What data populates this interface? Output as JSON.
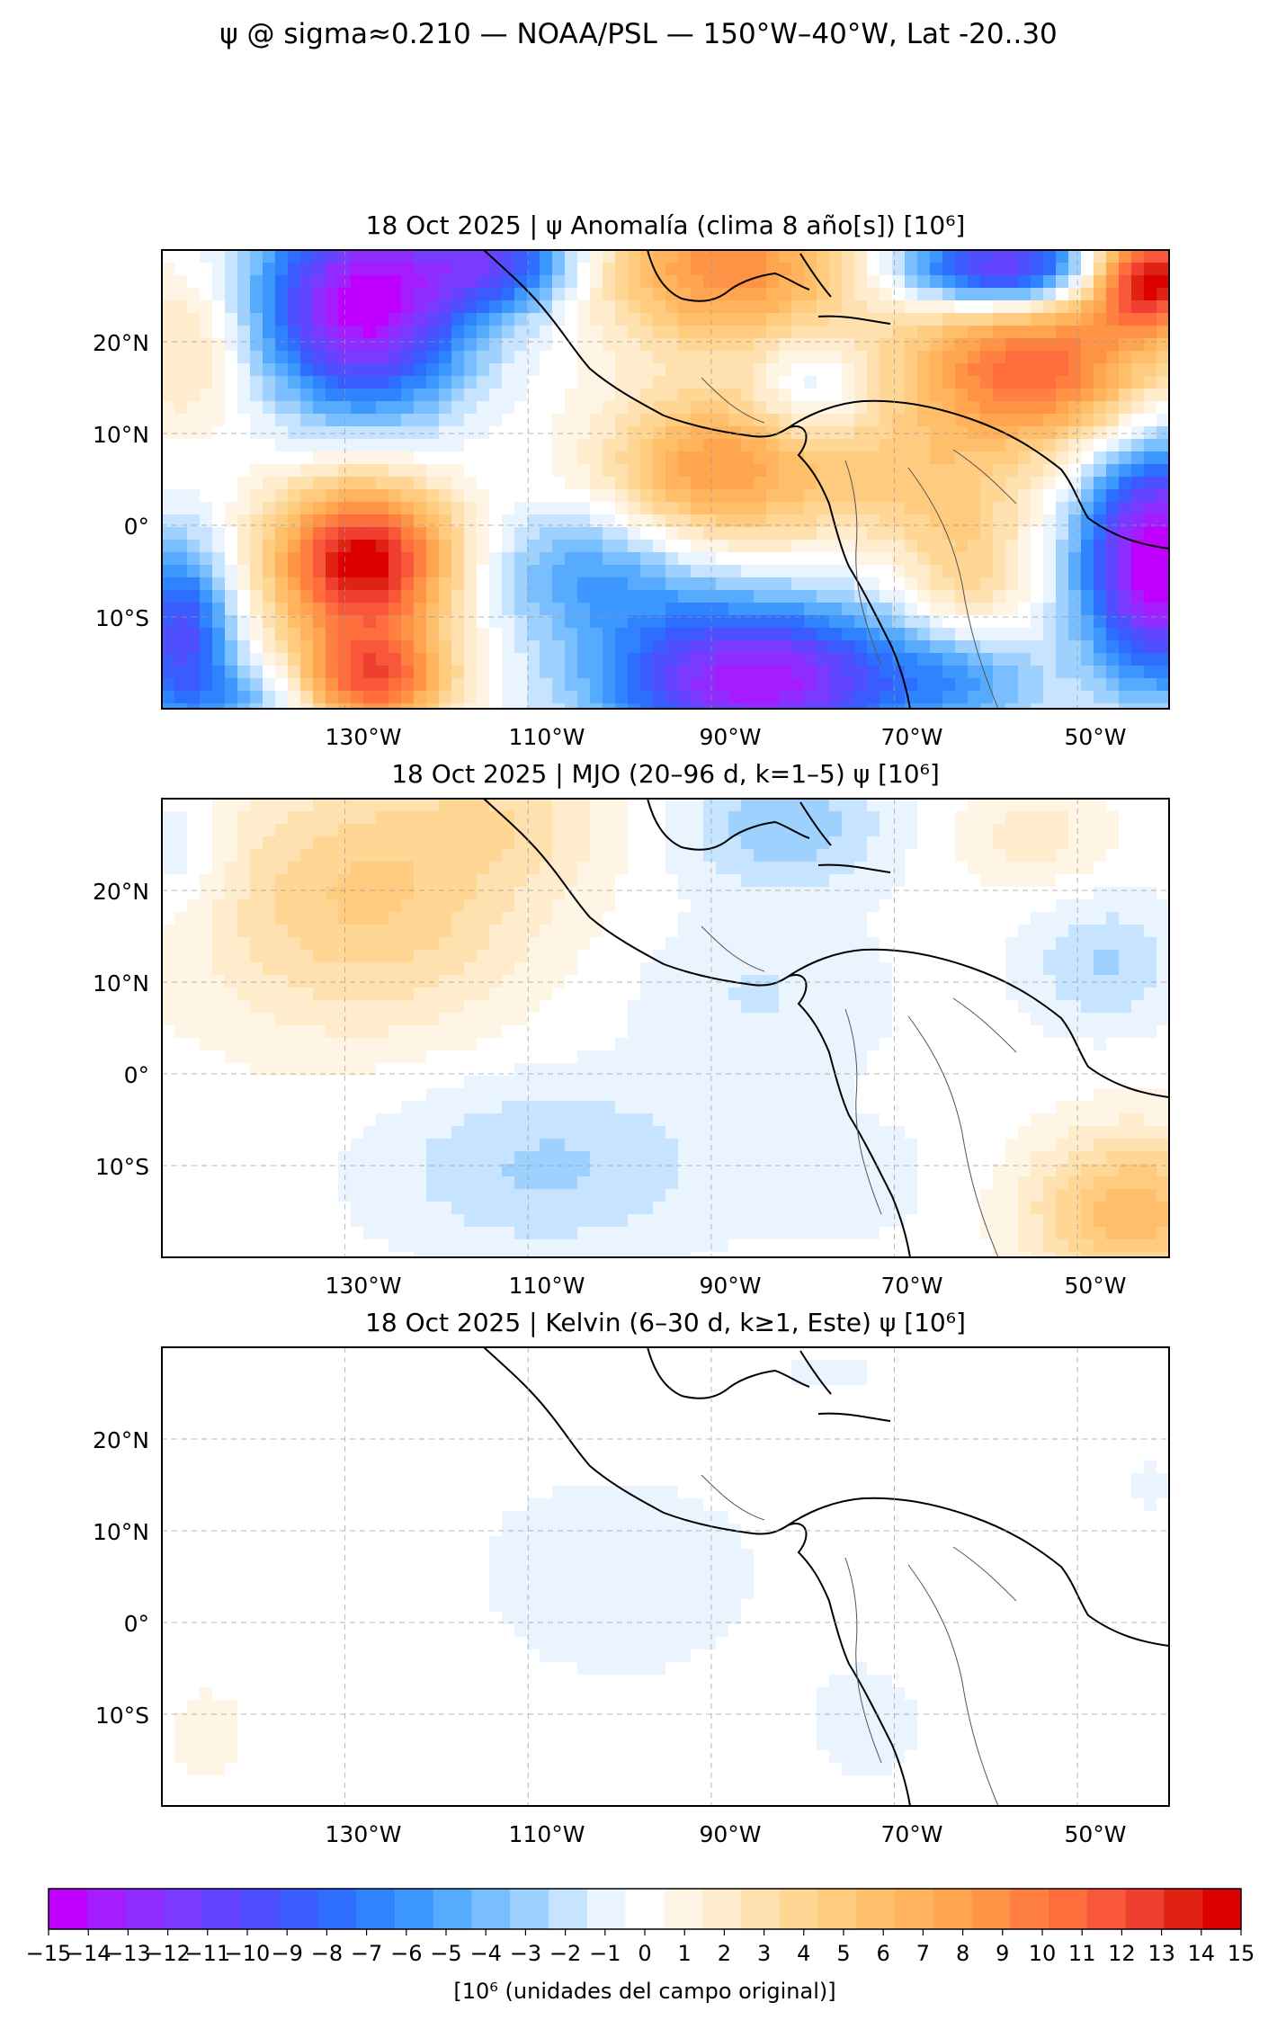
{
  "figure": {
    "suptitle": "ψ @ sigma≈0.210 — NOAA/PSL — 150°W–40°W, Lat -20..30"
  },
  "colorbar": {
    "label": "[10⁶ (unidades del campo original)]",
    "colors": [
      "#bf00ff",
      "#a41cff",
      "#8f2cff",
      "#7a3aff",
      "#6345ff",
      "#4f4fff",
      "#3a5cff",
      "#2e6eff",
      "#2f83ff",
      "#3c98ff",
      "#56abff",
      "#79bfff",
      "#9fd1ff",
      "#c6e3ff",
      "#e9f4ff",
      "#ffffff",
      "#fff5e4",
      "#ffeccc",
      "#ffe1b0",
      "#ffd694",
      "#ffcb7e",
      "#ffbe6a",
      "#ffb35c",
      "#ffa44f",
      "#ff9346",
      "#ff8040",
      "#ff6d3c",
      "#f9573a",
      "#ee3f31",
      "#e02212",
      "#dc0000"
    ],
    "ticks": [
      "−15",
      "−14",
      "−13",
      "−12",
      "−11",
      "−10",
      "−9",
      "−8",
      "−7",
      "−6",
      "−5",
      "−4",
      "−3",
      "−2",
      "−1",
      "0",
      "1",
      "2",
      "3",
      "4",
      "5",
      "6",
      "7",
      "8",
      "9",
      "10",
      "11",
      "12",
      "13",
      "14",
      "15"
    ]
  },
  "chart_data": [
    {
      "type": "heatmap",
      "title": "18 Oct 2025 | ψ Anomalía (clima 8 año[s]) [10⁶]",
      "xlabel": "",
      "ylabel": "",
      "xlim": [
        -150,
        -40
      ],
      "ylim": [
        -20,
        30
      ],
      "xticks": [
        -130,
        -110,
        -90,
        -70,
        -50
      ],
      "xtick_labels": [
        "130°W",
        "110°W",
        "90°W",
        "70°W",
        "50°W"
      ],
      "yticks": [
        20,
        10,
        0,
        -10
      ],
      "ytick_labels": [
        "20°N",
        "10°N",
        "0°",
        "10°S"
      ],
      "grid": true,
      "clim": [
        -15,
        15
      ],
      "centers": [
        {
          "lon": -147,
          "lat": 19,
          "value": 3,
          "sx": 5,
          "sy": 6
        },
        {
          "lon": -128,
          "lat": 24,
          "value": -15,
          "sx": 8,
          "sy": 8
        },
        {
          "lon": -113,
          "lat": 29,
          "value": -9,
          "sx": 6,
          "sy": 4
        },
        {
          "lon": -128,
          "lat": -4,
          "value": 15,
          "sx": 7,
          "sy": 6
        },
        {
          "lon": -127,
          "lat": -17,
          "value": 11,
          "sx": 6,
          "sy": 4
        },
        {
          "lon": -148,
          "lat": -12,
          "value": -10,
          "sx": 4,
          "sy": 7
        },
        {
          "lon": -140,
          "lat": -19,
          "value": -4,
          "sx": 5,
          "sy": 3
        },
        {
          "lon": -90,
          "lat": 6,
          "value": 8,
          "sx": 8,
          "sy": 6
        },
        {
          "lon": -85,
          "lat": -17,
          "value": -14,
          "sx": 12,
          "sy": 6
        },
        {
          "lon": -103,
          "lat": -5,
          "value": -5,
          "sx": 9,
          "sy": 5
        },
        {
          "lon": -88,
          "lat": 28,
          "value": 9,
          "sx": 10,
          "sy": 6
        },
        {
          "lon": -79,
          "lat": 15,
          "value": -3,
          "sx": 4,
          "sy": 4
        },
        {
          "lon": -55,
          "lat": 17,
          "value": 11,
          "sx": 10,
          "sy": 6
        },
        {
          "lon": -42,
          "lat": 27,
          "value": 15,
          "sx": 5,
          "sy": 4
        },
        {
          "lon": -58,
          "lat": 28,
          "value": -13,
          "sx": 8,
          "sy": 3
        },
        {
          "lon": -41,
          "lat": -4,
          "value": -16,
          "sx": 6,
          "sy": 9
        },
        {
          "lon": -62,
          "lat": -5,
          "value": 4,
          "sx": 5,
          "sy": 6
        },
        {
          "lon": -70,
          "lat": 5,
          "value": 4,
          "sx": 9,
          "sy": 5
        },
        {
          "lon": -62,
          "lat": -17,
          "value": -4,
          "sx": 6,
          "sy": 4
        }
      ]
    },
    {
      "type": "heatmap",
      "title": "18 Oct 2025 | MJO (20–96 d, k=1–5) ψ [10⁶]",
      "xlabel": "",
      "ylabel": "",
      "xlim": [
        -150,
        -40
      ],
      "ylim": [
        -20,
        30
      ],
      "xticks": [
        -130,
        -110,
        -90,
        -70,
        -50
      ],
      "xtick_labels": [
        "130°W",
        "110°W",
        "90°W",
        "70°W",
        "50°W"
      ],
      "yticks": [
        20,
        10,
        0,
        -10
      ],
      "ytick_labels": [
        "20°N",
        "10°N",
        "0°",
        "10°S"
      ],
      "grid": true,
      "clim": [
        -15,
        15
      ],
      "centers": [
        {
          "lon": -128,
          "lat": 19,
          "value": 4.5,
          "sx": 13,
          "sy": 10
        },
        {
          "lon": -112,
          "lat": 28,
          "value": 2,
          "sx": 8,
          "sy": 5
        },
        {
          "lon": -108,
          "lat": -10,
          "value": -2.6,
          "sx": 13,
          "sy": 7
        },
        {
          "lon": -82,
          "lat": 27,
          "value": -3.2,
          "sx": 8,
          "sy": 5
        },
        {
          "lon": -85,
          "lat": 9,
          "value": -1.5,
          "sx": 10,
          "sy": 6
        },
        {
          "lon": -47,
          "lat": 12,
          "value": -2.5,
          "sx": 6,
          "sy": 5
        },
        {
          "lon": -44,
          "lat": -15,
          "value": 6,
          "sx": 8,
          "sy": 6
        },
        {
          "lon": -55,
          "lat": 26,
          "value": 2,
          "sx": 6,
          "sy": 4
        },
        {
          "lon": -148,
          "lat": 24,
          "value": -2,
          "sx": 4,
          "sy": 5
        },
        {
          "lon": -72,
          "lat": -12,
          "value": -0.6,
          "sx": 10,
          "sy": 8
        }
      ]
    },
    {
      "type": "heatmap",
      "title": "18 Oct 2025 | Kelvin (6–30 d, k≥1, Este) ψ [10⁶]",
      "xlabel": "",
      "ylabel": "",
      "xlim": [
        -150,
        -40
      ],
      "ylim": [
        -20,
        30
      ],
      "xticks": [
        -130,
        -110,
        -90,
        -70,
        -50
      ],
      "xtick_labels": [
        "130°W",
        "110°W",
        "90°W",
        "70°W",
        "50°W"
      ],
      "yticks": [
        20,
        10,
        0,
        -10
      ],
      "ytick_labels": [
        "20°N",
        "10°N",
        "0°",
        "10°S"
      ],
      "grid": true,
      "clim": [
        -15,
        15
      ],
      "centers": [
        {
          "lon": -100,
          "lat": 5,
          "value": -0.6,
          "sx": 22,
          "sy": 16
        },
        {
          "lon": -133,
          "lat": 22,
          "value": -0.3,
          "sx": 10,
          "sy": 7
        },
        {
          "lon": -145,
          "lat": -12,
          "value": 0.8,
          "sx": 4,
          "sy": 5
        },
        {
          "lon": -72,
          "lat": -12,
          "value": -0.5,
          "sx": 6,
          "sy": 6
        },
        {
          "lon": -75,
          "lat": 28,
          "value": -0.4,
          "sx": 10,
          "sy": 4
        },
        {
          "lon": -42,
          "lat": 15,
          "value": -0.5,
          "sx": 5,
          "sy": 6
        }
      ]
    }
  ]
}
